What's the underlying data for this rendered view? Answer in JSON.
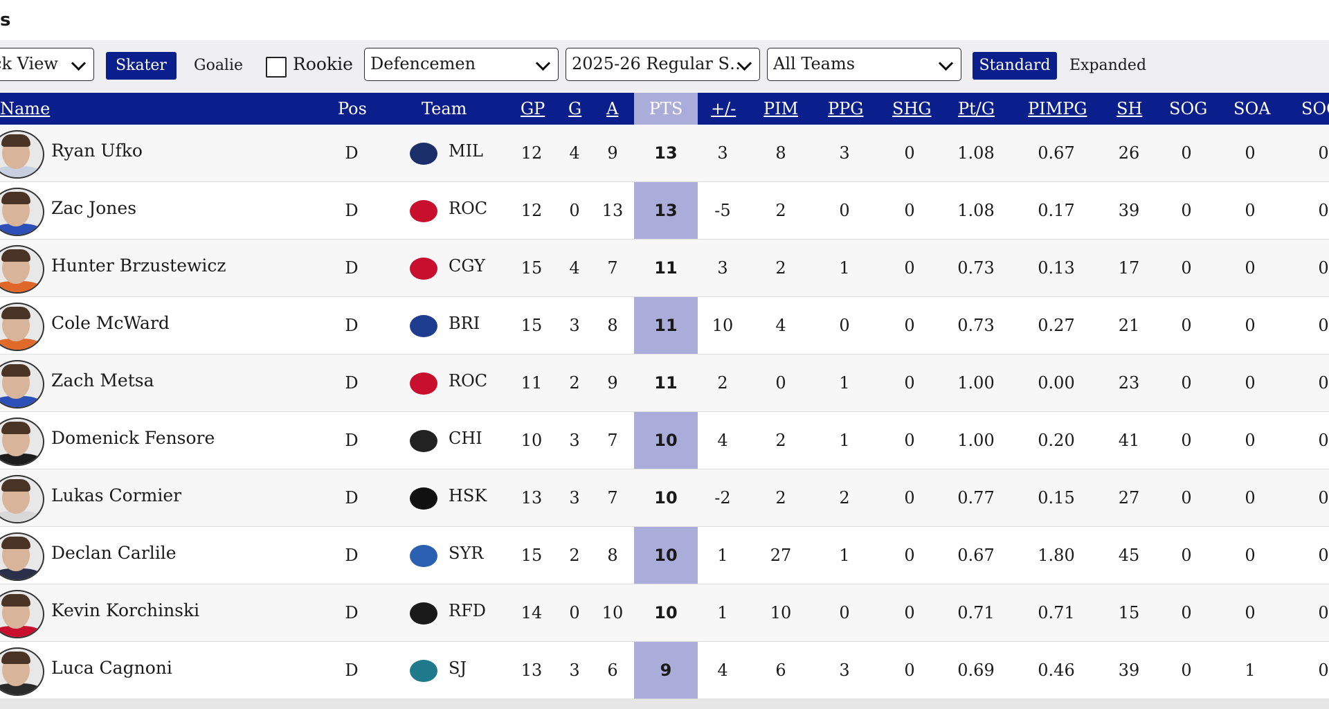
{
  "page": {
    "title": "s"
  },
  "toolbar": {
    "view_select": {
      "value": "ck View"
    },
    "player_type": {
      "skater": "Skater",
      "goalie": "Goalie"
    },
    "rookie": {
      "label": "Rookie",
      "checked": false
    },
    "position_select": {
      "value": "Defencemen"
    },
    "season_select": {
      "value": "2025-26 Regular S…"
    },
    "team_select": {
      "value": "All Teams"
    },
    "mode": {
      "standard": "Standard",
      "expanded": "Expanded"
    }
  },
  "table": {
    "columns": [
      "Name",
      "Pos",
      "Team",
      "GP",
      "G",
      "A",
      "PTS",
      "+/-",
      "PIM",
      "PPG",
      "SHG",
      "Pt/G",
      "PIMPG",
      "SH",
      "SOG",
      "SOA",
      "SOG%"
    ],
    "sorted_column": "PTS",
    "highlight_color": "#aaacd9",
    "header_color": "#0b1f8c",
    "rows": [
      {
        "name": "Ryan Ufko",
        "pos": "D",
        "team": "MIL",
        "team_color": "#1b2f6b",
        "jersey": "#c8d0e0",
        "gp": "12",
        "g": "4",
        "a": "9",
        "pts": "13",
        "pm": "3",
        "pim": "8",
        "ppg": "3",
        "shg": "0",
        "ptg": "1.08",
        "pimpg": "0.67",
        "sh": "26",
        "sog": "0",
        "soa": "0",
        "sogpct": "0"
      },
      {
        "name": "Zac Jones",
        "pos": "D",
        "team": "ROC",
        "team_color": "#c8102e",
        "jersey": "#2c4fb8",
        "gp": "12",
        "g": "0",
        "a": "13",
        "pts": "13",
        "pm": "-5",
        "pim": "2",
        "ppg": "0",
        "shg": "0",
        "ptg": "1.08",
        "pimpg": "0.17",
        "sh": "39",
        "sog": "0",
        "soa": "0",
        "sogpct": "0"
      },
      {
        "name": "Hunter Brzustewicz",
        "pos": "D",
        "team": "CGY",
        "team_color": "#c8102e",
        "jersey": "#e0672a",
        "gp": "15",
        "g": "4",
        "a": "7",
        "pts": "11",
        "pm": "3",
        "pim": "2",
        "ppg": "1",
        "shg": "0",
        "ptg": "0.73",
        "pimpg": "0.13",
        "sh": "17",
        "sog": "0",
        "soa": "0",
        "sogpct": "0"
      },
      {
        "name": "Cole McWard",
        "pos": "D",
        "team": "BRI",
        "team_color": "#1f3d8f",
        "jersey": "#e06a2a",
        "gp": "15",
        "g": "3",
        "a": "8",
        "pts": "11",
        "pm": "10",
        "pim": "4",
        "ppg": "0",
        "shg": "0",
        "ptg": "0.73",
        "pimpg": "0.27",
        "sh": "21",
        "sog": "0",
        "soa": "0",
        "sogpct": "0"
      },
      {
        "name": "Zach Metsa",
        "pos": "D",
        "team": "ROC",
        "team_color": "#c8102e",
        "jersey": "#2c4fb8",
        "gp": "11",
        "g": "2",
        "a": "9",
        "pts": "11",
        "pm": "2",
        "pim": "0",
        "ppg": "1",
        "shg": "0",
        "ptg": "1.00",
        "pimpg": "0.00",
        "sh": "23",
        "sog": "0",
        "soa": "0",
        "sogpct": "0"
      },
      {
        "name": "Domenick Fensore",
        "pos": "D",
        "team": "CHI",
        "team_color": "#222222",
        "jersey": "#1c1c1c",
        "gp": "10",
        "g": "3",
        "a": "7",
        "pts": "10",
        "pm": "4",
        "pim": "2",
        "ppg": "1",
        "shg": "0",
        "ptg": "1.00",
        "pimpg": "0.20",
        "sh": "41",
        "sog": "0",
        "soa": "0",
        "sogpct": "0"
      },
      {
        "name": "Lukas Cormier",
        "pos": "D",
        "team": "HSK",
        "team_color": "#111111",
        "jersey": "#d8d8d8",
        "gp": "13",
        "g": "3",
        "a": "7",
        "pts": "10",
        "pm": "-2",
        "pim": "2",
        "ppg": "2",
        "shg": "0",
        "ptg": "0.77",
        "pimpg": "0.15",
        "sh": "27",
        "sog": "0",
        "soa": "0",
        "sogpct": "0"
      },
      {
        "name": "Declan Carlile",
        "pos": "D",
        "team": "SYR",
        "team_color": "#2b5fb0",
        "jersey": "#2a2f4a",
        "gp": "15",
        "g": "2",
        "a": "8",
        "pts": "10",
        "pm": "1",
        "pim": "27",
        "ppg": "1",
        "shg": "0",
        "ptg": "0.67",
        "pimpg": "1.80",
        "sh": "45",
        "sog": "0",
        "soa": "0",
        "sogpct": "0"
      },
      {
        "name": "Kevin Korchinski",
        "pos": "D",
        "team": "RFD",
        "team_color": "#1a1a1a",
        "jersey": "#c8102e",
        "gp": "14",
        "g": "0",
        "a": "10",
        "pts": "10",
        "pm": "1",
        "pim": "10",
        "ppg": "0",
        "shg": "0",
        "ptg": "0.71",
        "pimpg": "0.71",
        "sh": "15",
        "sog": "0",
        "soa": "0",
        "sogpct": "0"
      },
      {
        "name": "Luca Cagnoni",
        "pos": "D",
        "team": "SJ",
        "team_color": "#1f7a8c",
        "jersey": "#2a2a2a",
        "gp": "13",
        "g": "3",
        "a": "6",
        "pts": "9",
        "pm": "4",
        "pim": "6",
        "ppg": "3",
        "shg": "0",
        "ptg": "0.69",
        "pimpg": "0.46",
        "sh": "39",
        "sog": "0",
        "soa": "1",
        "sogpct": "0"
      }
    ]
  }
}
